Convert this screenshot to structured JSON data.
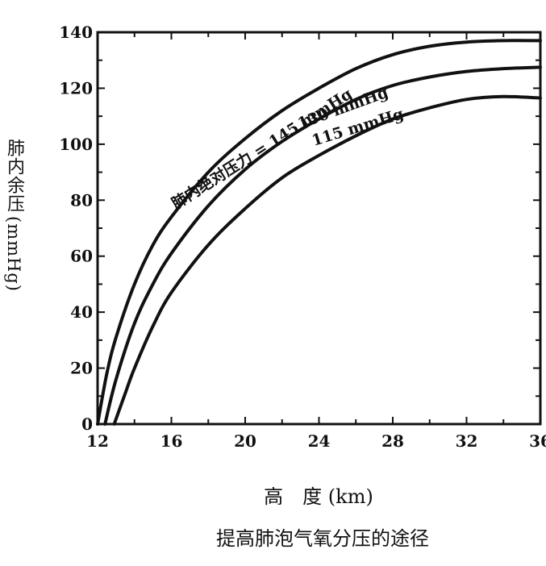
{
  "chart_data": {
    "type": "line",
    "ylabel_main": "肺内余压",
    "ylabel_unit": "(mmHg)",
    "xlabel": "高　度 (km)",
    "caption": "提高肺泡气氧分压的途径",
    "xlim": [
      12,
      36
    ],
    "ylim": [
      0,
      140
    ],
    "x_ticks": [
      "12",
      "16",
      "20",
      "24",
      "28",
      "32",
      "36"
    ],
    "y_ticks": [
      "0",
      "20",
      "40",
      "60",
      "80",
      "100",
      "120",
      "140"
    ],
    "series": [
      {
        "name": "肺内绝对压力 = 145 mmHg",
        "x": [
          12.0,
          12.5,
          13.0,
          14.0,
          15.0,
          16.0,
          18.0,
          20.0,
          22.0,
          24.0,
          26.0,
          28.0,
          30.0,
          32.0,
          34.0,
          36.0
        ],
        "y": [
          0,
          18,
          31,
          50,
          64,
          74,
          90,
          102,
          112,
          120,
          127,
          132,
          135,
          136.5,
          137,
          137
        ]
      },
      {
        "name": "130 mmHg",
        "x": [
          12.4,
          13.0,
          14.0,
          15.0,
          16.0,
          18.0,
          20.0,
          22.0,
          24.0,
          26.0,
          28.0,
          30.0,
          32.0,
          34.0,
          36.0
        ],
        "y": [
          0,
          16,
          36,
          50,
          61,
          78,
          91,
          101,
          109,
          116,
          121,
          124,
          126,
          127,
          127.5
        ]
      },
      {
        "name": "115 mmHg",
        "x": [
          12.9,
          13.5,
          14.0,
          15.0,
          16.0,
          18.0,
          20.0,
          22.0,
          24.0,
          26.0,
          28.0,
          30.0,
          32.0,
          34.0,
          36.0
        ],
        "y": [
          0,
          11,
          20,
          35,
          47,
          64,
          77,
          88,
          96,
          103,
          109,
          113,
          116,
          117,
          116.5
        ]
      }
    ]
  }
}
